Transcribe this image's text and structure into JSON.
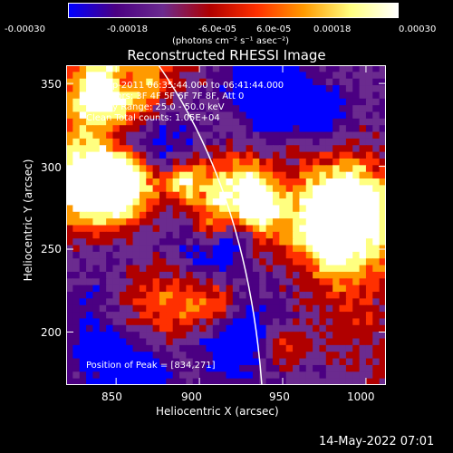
{
  "colorbar": {
    "tick_labels": [
      "-0.00030",
      "-0.00018",
      "-6.0e-05",
      "6.0e-05",
      "0.00018",
      "0.00030"
    ],
    "unit_label": "(photons cm⁻² s⁻¹ asec⁻²)",
    "colors": [
      "#0000ff",
      "#4b0082",
      "#6b2b8f",
      "#b00000",
      "#ff3000",
      "#ff9a00",
      "#ffff80",
      "#ffffff"
    ]
  },
  "image": {
    "title": "Reconstructed RHESSI Image",
    "time_range": "18-Sep-2011 06:35:44.000 to 06:41:44.000",
    "detectors": "Detectors: 3F 4F 5F 6F 7F 8F, Att 0",
    "energy_range": "Energy Range: 25.0 - 50.0 keV",
    "algorithm": "Clean    Total counts: 1.05E+04",
    "peak": "Position of Peak = [834,271]",
    "xlabel": "Heliocentric X (arcsec)",
    "ylabel": "Heliocentric Y (arcsec)",
    "x_ticks": [
      "850",
      "900",
      "950",
      "1000"
    ],
    "y_ticks": [
      "350",
      "300",
      "250",
      "200"
    ],
    "x_range": [
      820,
      1012
    ],
    "y_range": [
      168,
      361
    ]
  },
  "footer": {
    "date": "14-May-2022 07:01"
  }
}
